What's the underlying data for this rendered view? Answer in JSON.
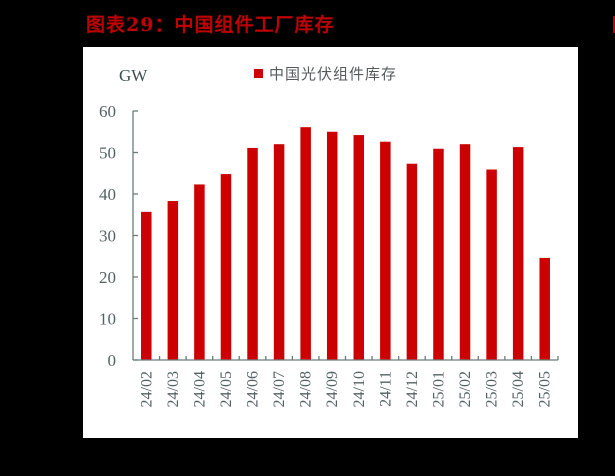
{
  "header": {
    "title": "图表29：中国组件工厂库存"
  },
  "colors": {
    "title": "#C00000",
    "bar": "#CC0000",
    "axis": "#6b7b7b",
    "panel": "#ffffff",
    "background": "#000000"
  },
  "chart_data": {
    "type": "bar",
    "title": "图表29：中国组件工厂库存",
    "xlabel": "",
    "ylabel": "GW",
    "ylim": [
      0,
      60
    ],
    "yticks": [
      0,
      10,
      20,
      30,
      40,
      50,
      60
    ],
    "grid": false,
    "legend_position": "top",
    "categories": [
      "24/02",
      "24/03",
      "24/04",
      "24/05",
      "24/06",
      "24/07",
      "24/08",
      "24/09",
      "24/10",
      "24/11",
      "24/12",
      "25/01",
      "25/02",
      "25/03",
      "25/04",
      "25/05"
    ],
    "series": [
      {
        "name": "中国光伏组件库存",
        "color": "#CC0000",
        "values": [
          35.7,
          38.3,
          42.3,
          44.8,
          51.1,
          52.0,
          56.1,
          55.0,
          54.2,
          52.6,
          47.3,
          50.9,
          52.0,
          45.9,
          51.3,
          24.6
        ]
      }
    ]
  }
}
